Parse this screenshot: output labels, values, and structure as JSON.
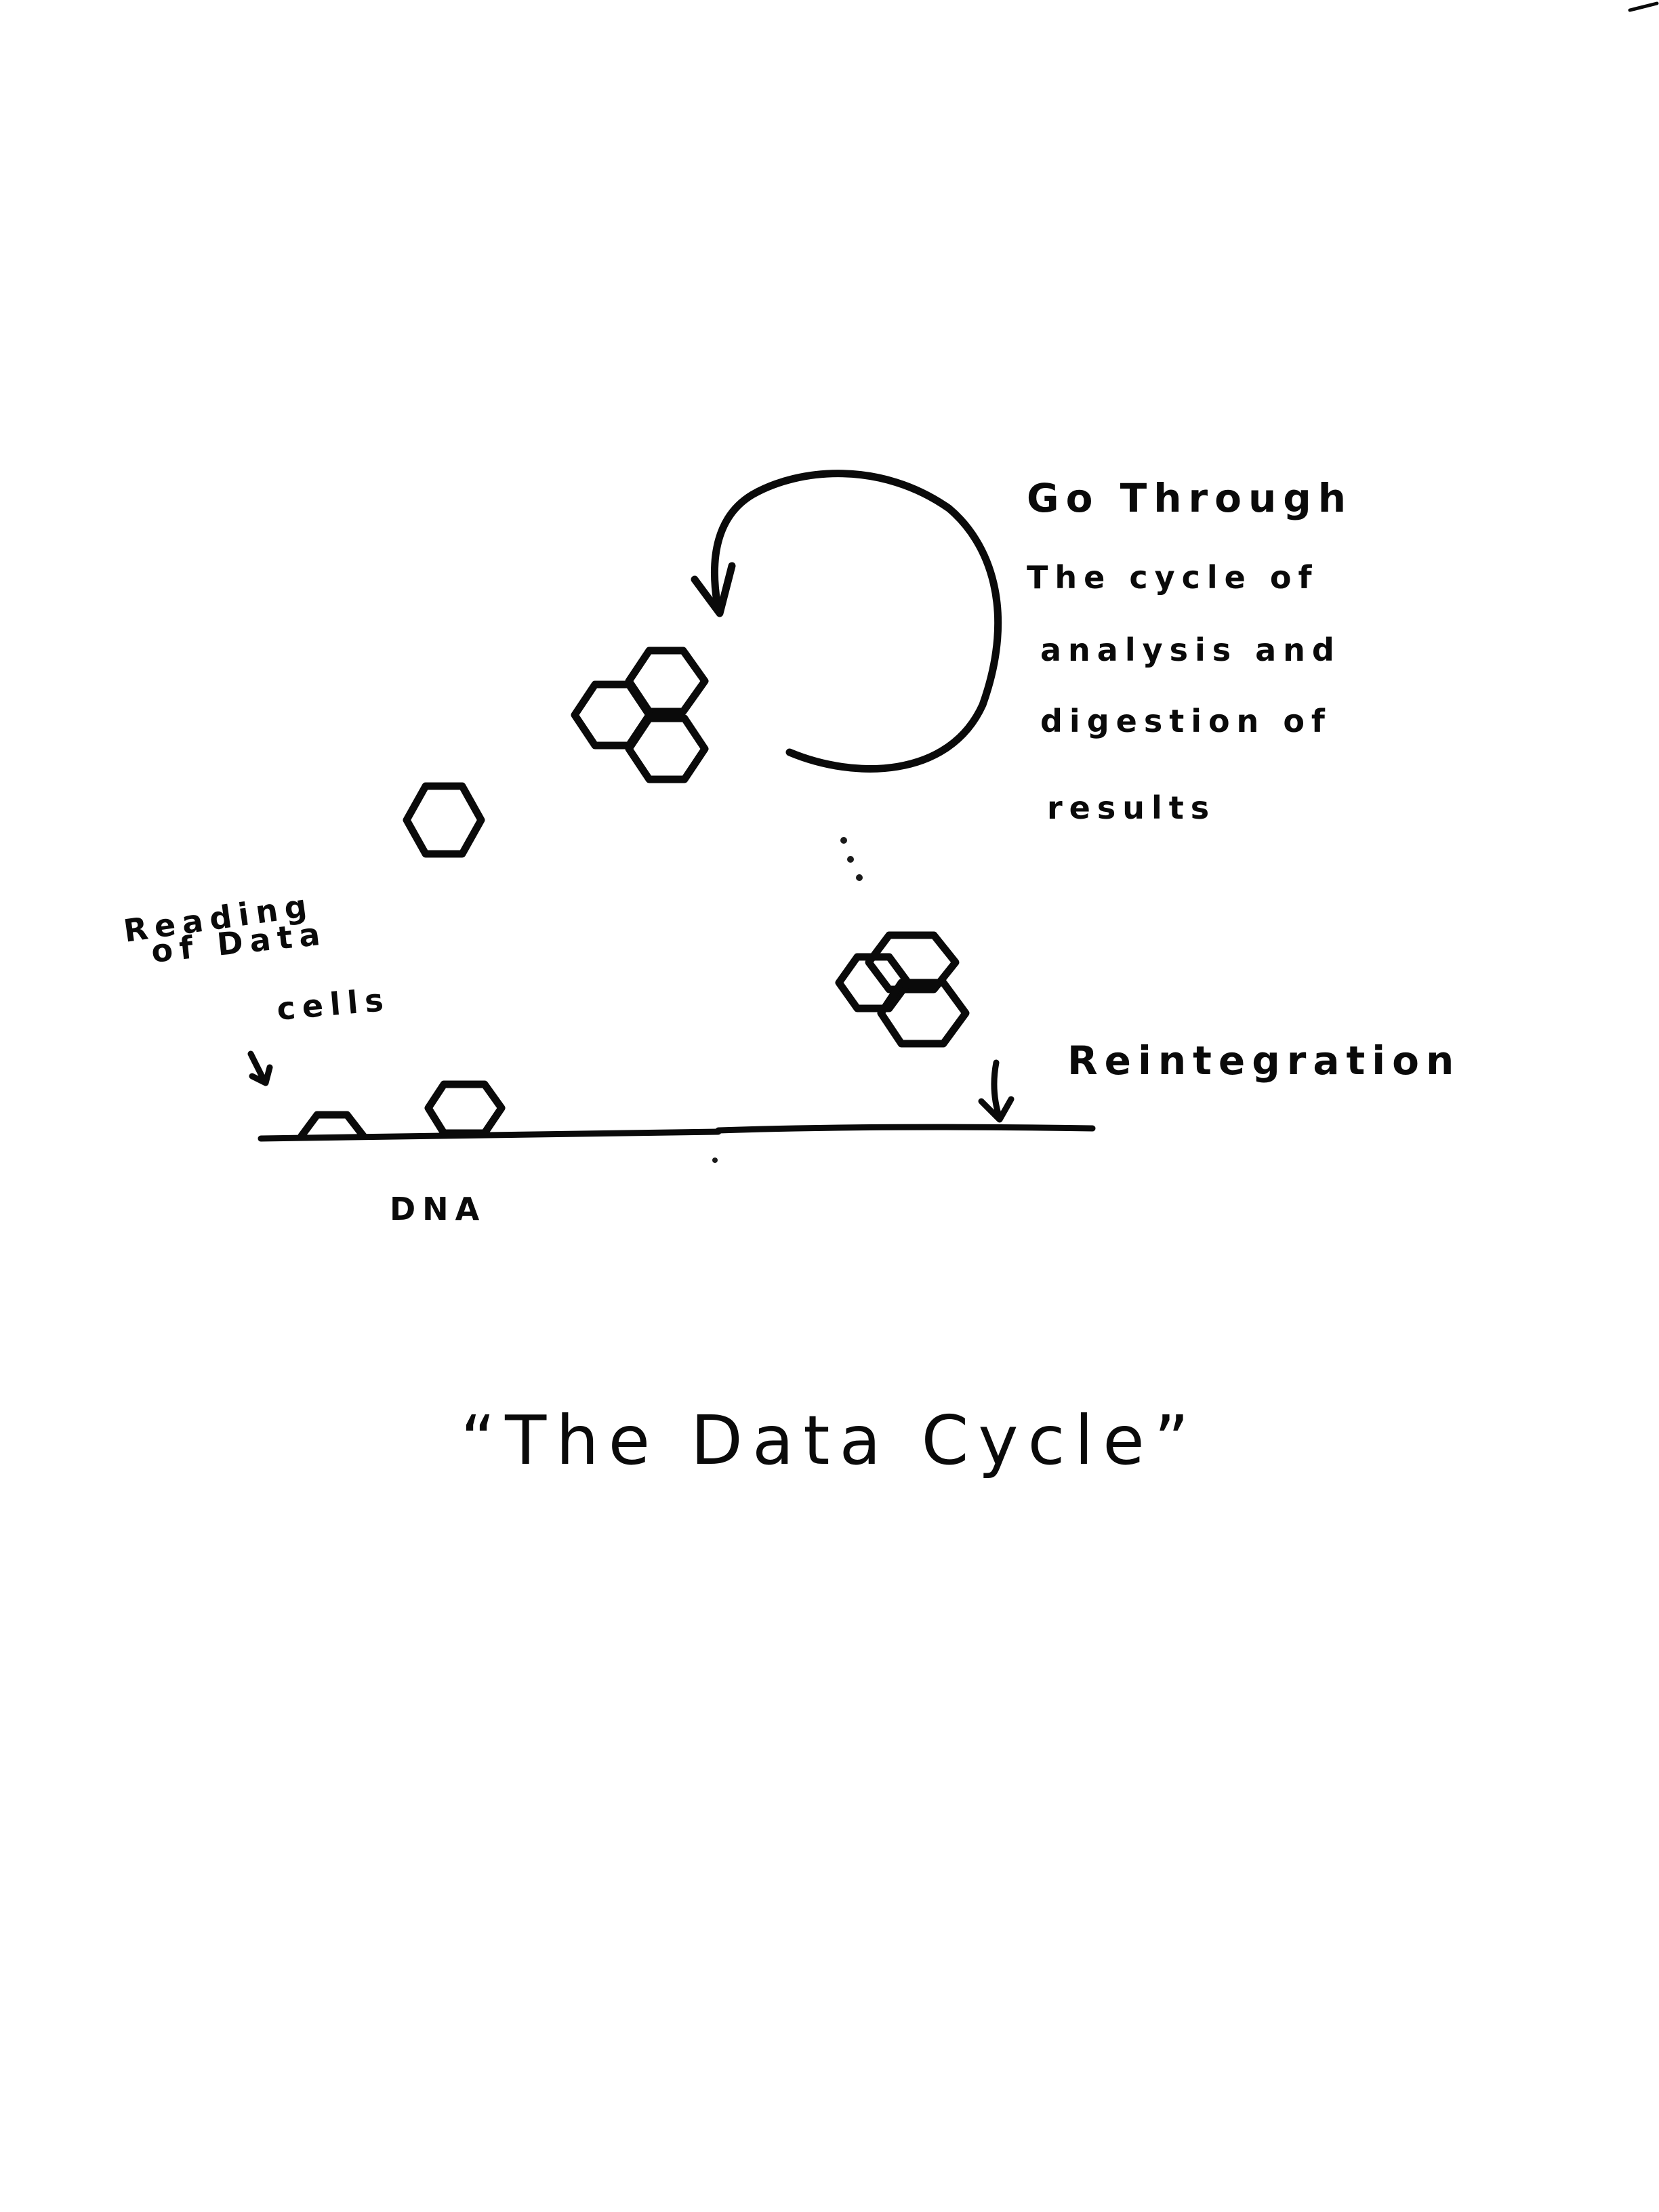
{
  "annotations": {
    "loop_label": {
      "lines": [
        "Go Through",
        "The cycle of",
        "analysis and",
        "digestion of",
        "results"
      ]
    },
    "left_label": {
      "lines": [
        "Reading",
        "of Data",
        "cells"
      ]
    },
    "right_label": "Reintegration",
    "base_label": "DNA"
  },
  "title": "“The Data Cycle”"
}
